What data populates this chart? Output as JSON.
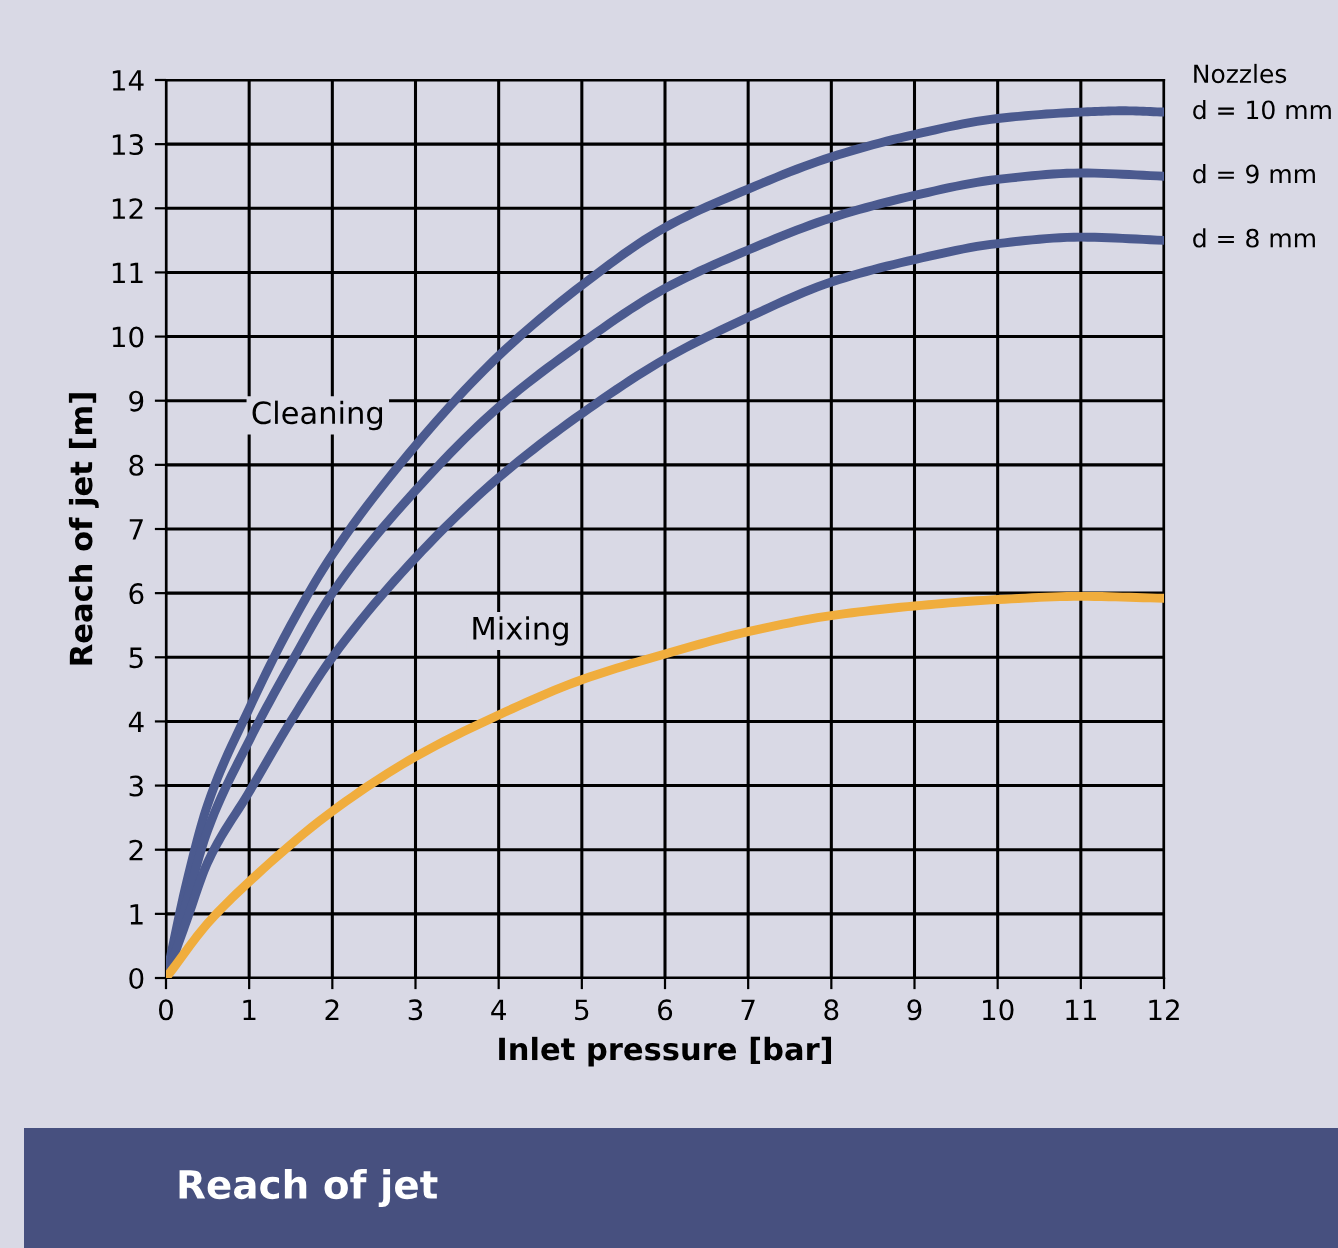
{
  "chart_data": {
    "type": "line",
    "title": "Reach of jet",
    "xlabel": "Inlet pressure [bar]",
    "ylabel": "Reach of jet [m]",
    "xlim": [
      0,
      12
    ],
    "ylim": [
      0,
      14
    ],
    "xticks": [
      0,
      1,
      2,
      3,
      4,
      5,
      6,
      7,
      8,
      9,
      10,
      11,
      12
    ],
    "yticks": [
      0,
      1,
      2,
      3,
      4,
      5,
      6,
      7,
      8,
      9,
      10,
      11,
      12,
      13,
      14
    ],
    "grid": true,
    "legend": false,
    "line_style": "solid",
    "marker": "none",
    "annotations": [
      "Nozzles",
      "Cleaning",
      "Mixing"
    ],
    "series": [
      {
        "name": "d = 10 mm",
        "color": "#4b5a8f",
        "x": [
          0,
          0.25,
          0.5,
          1,
          1.5,
          2,
          3,
          4,
          5,
          6,
          7,
          8,
          9,
          10,
          11,
          11.5,
          12
        ],
        "values": [
          0,
          1.5,
          2.7,
          4.2,
          5.5,
          6.6,
          8.3,
          9.7,
          10.8,
          11.7,
          12.3,
          12.8,
          13.15,
          13.4,
          13.5,
          13.52,
          13.5
        ]
      },
      {
        "name": "d = 9 mm",
        "color": "#4b5a8f",
        "x": [
          0,
          0.25,
          0.5,
          1,
          1.5,
          2,
          3,
          4,
          5,
          6,
          7,
          8,
          9,
          10,
          11,
          12
        ],
        "values": [
          0,
          1.2,
          2.3,
          3.7,
          4.9,
          6.0,
          7.6,
          8.9,
          9.9,
          10.75,
          11.35,
          11.85,
          12.2,
          12.45,
          12.55,
          12.5
        ]
      },
      {
        "name": "d = 8 mm",
        "color": "#4b5a8f",
        "x": [
          0,
          0.25,
          0.5,
          1,
          1.5,
          2,
          3,
          4,
          5,
          6,
          7,
          8,
          9,
          10,
          11,
          12
        ],
        "values": [
          0,
          0.9,
          1.8,
          2.9,
          4.0,
          5.0,
          6.55,
          7.8,
          8.8,
          9.65,
          10.3,
          10.85,
          11.2,
          11.45,
          11.55,
          11.5
        ]
      },
      {
        "color": "#f0ad3d",
        "x": [
          0,
          0.5,
          1,
          2,
          3,
          4,
          5,
          6,
          7,
          8,
          9,
          10,
          11,
          12
        ],
        "values": [
          0,
          0.85,
          1.5,
          2.6,
          3.45,
          4.1,
          4.65,
          5.05,
          5.4,
          5.65,
          5.8,
          5.9,
          5.95,
          5.92
        ]
      }
    ]
  }
}
